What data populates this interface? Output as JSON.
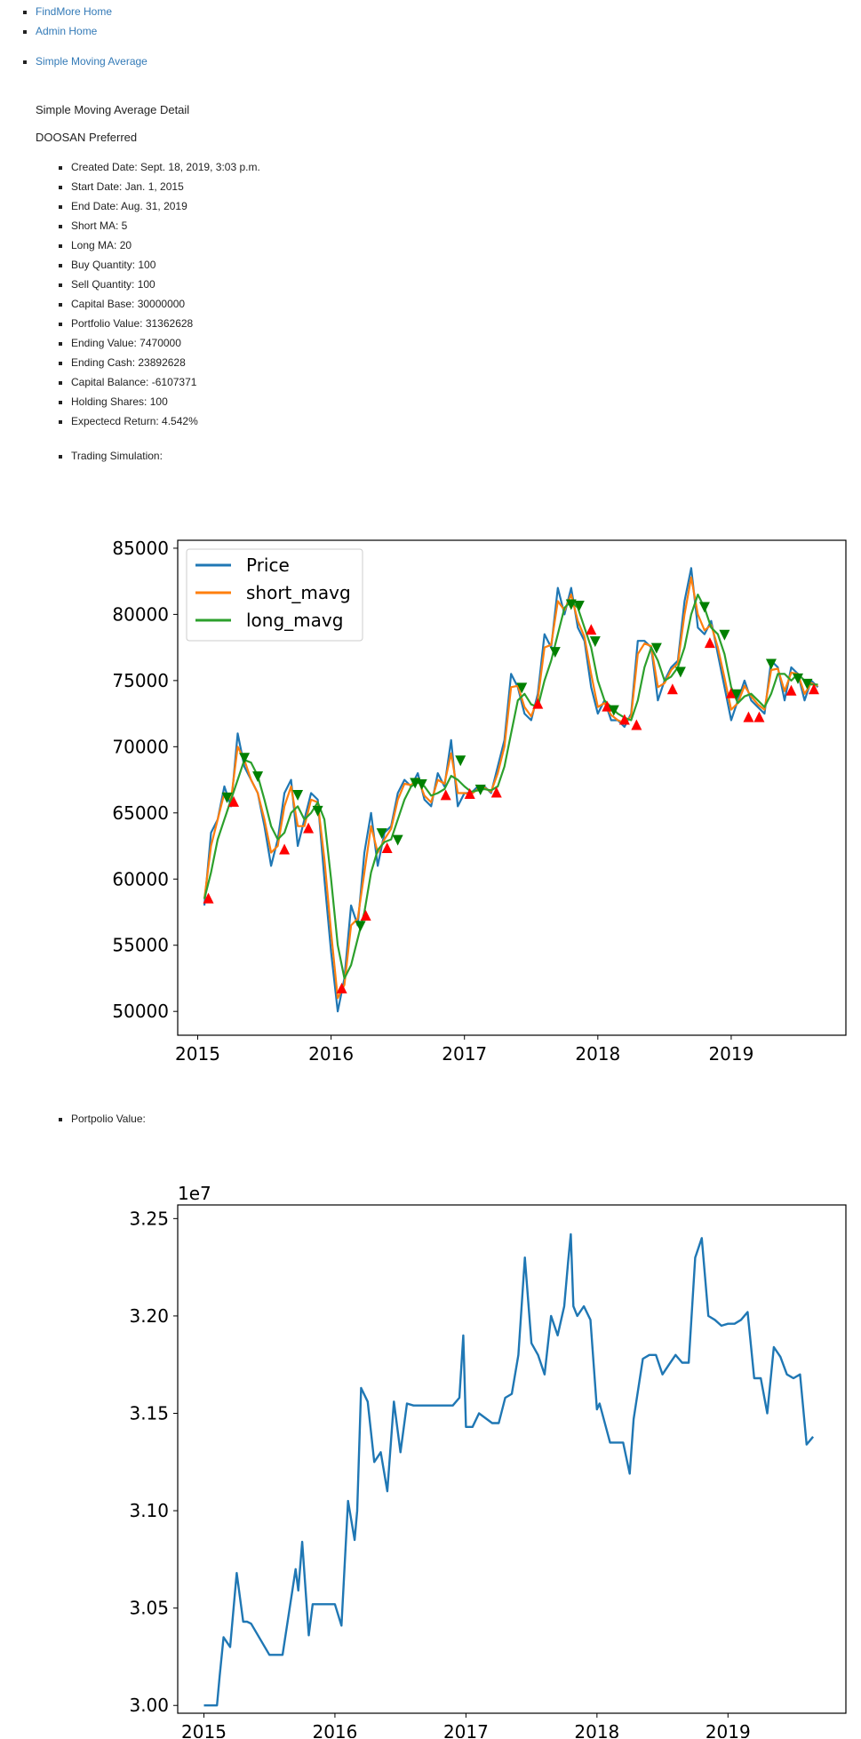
{
  "nav_top": [
    "FindMore Home",
    "Admin Home"
  ],
  "nav_section": "Simple Moving Average",
  "page_title": "Simple Moving Average Detail",
  "stock_name": "DOOSAN Preferred",
  "details": [
    "Created Date: Sept. 18, 2019, 3:03 p.m.",
    "Start Date: Jan. 1, 2015",
    "End Date: Aug. 31, 2019",
    "Short MA: 5",
    "Long MA: 20",
    "Buy Quantity: 100",
    "Sell Quantity: 100",
    "Capital Base: 30000000",
    "Portfolio Value: 31362628",
    "Ending Value: 7470000",
    "Ending Cash: 23892628",
    "Capital Balance: -6107371",
    "Holding Shares: 100",
    "Expectecd Return: 4.542%"
  ],
  "trading_label": "Trading Simulation:",
  "portfolio_label": "Portpolio Value:",
  "colors": {
    "price": "#1f77b4",
    "short": "#ff7f0e",
    "long": "#2ca02c",
    "buy": "#ff0000",
    "sell": "#008000",
    "link": "#337ab7"
  },
  "chart_data": [
    {
      "type": "line",
      "title": "",
      "xlim": [
        2014.85,
        2019.86
      ],
      "ylim": [
        48200,
        85600
      ],
      "x_ticks": [
        "2015",
        "2016",
        "2017",
        "2018",
        "2019"
      ],
      "y_ticks": [
        "50000",
        "55000",
        "60000",
        "65000",
        "70000",
        "75000",
        "80000",
        "85000"
      ],
      "legend": "top-left",
      "series": [
        {
          "name": "Price",
          "color": "#1f77b4",
          "x": [
            2015.05,
            2015.1,
            2015.15,
            2015.2,
            2015.25,
            2015.3,
            2015.35,
            2015.4,
            2015.45,
            2015.5,
            2015.55,
            2015.6,
            2015.65,
            2015.7,
            2015.75,
            2015.8,
            2015.85,
            2015.9,
            2015.95,
            2016.0,
            2016.05,
            2016.1,
            2016.15,
            2016.2,
            2016.25,
            2016.3,
            2016.35,
            2016.4,
            2016.45,
            2016.5,
            2016.55,
            2016.6,
            2016.65,
            2016.7,
            2016.75,
            2016.8,
            2016.85,
            2016.9,
            2016.95,
            2017.0,
            2017.05,
            2017.1,
            2017.15,
            2017.2,
            2017.25,
            2017.3,
            2017.35,
            2017.4,
            2017.45,
            2017.5,
            2017.55,
            2017.6,
            2017.65,
            2017.7,
            2017.75,
            2017.8,
            2017.85,
            2017.9,
            2017.95,
            2018.0,
            2018.05,
            2018.1,
            2018.15,
            2018.2,
            2018.25,
            2018.3,
            2018.35,
            2018.4,
            2018.45,
            2018.5,
            2018.55,
            2018.6,
            2018.65,
            2018.7,
            2018.75,
            2018.8,
            2018.85,
            2018.9,
            2018.95,
            2019.0,
            2019.05,
            2019.1,
            2019.15,
            2019.2,
            2019.25,
            2019.3,
            2019.35,
            2019.4,
            2019.45,
            2019.5,
            2019.55,
            2019.6,
            2019.65
          ],
          "y": [
            58000,
            63500,
            64500,
            67000,
            65500,
            71000,
            68500,
            67500,
            66500,
            64000,
            61000,
            63000,
            66500,
            67500,
            62500,
            64500,
            66500,
            66000,
            60000,
            54500,
            50000,
            52500,
            58000,
            56500,
            62000,
            65000,
            61000,
            63500,
            64000,
            66500,
            67500,
            67000,
            68000,
            66000,
            65500,
            68000,
            67000,
            70500,
            65500,
            66500,
            66500,
            67000,
            67000,
            66500,
            68500,
            70500,
            75500,
            74500,
            72500,
            72000,
            74000,
            78500,
            77500,
            82000,
            80000,
            82000,
            79000,
            78000,
            74500,
            72500,
            73500,
            72000,
            72000,
            71500,
            72500,
            78000,
            78000,
            77500,
            73500,
            75000,
            76000,
            76500,
            81000,
            83500,
            79000,
            78500,
            79500,
            77000,
            74500,
            72000,
            73500,
            75000,
            73500,
            73000,
            72500,
            76500,
            76000,
            73500,
            76000,
            75500,
            73500,
            75000,
            74500
          ]
        },
        {
          "name": "short_mavg",
          "color": "#ff7f0e",
          "x": [
            2015.05,
            2015.1,
            2015.15,
            2015.2,
            2015.25,
            2015.3,
            2015.35,
            2015.4,
            2015.45,
            2015.5,
            2015.55,
            2015.6,
            2015.65,
            2015.7,
            2015.75,
            2015.8,
            2015.85,
            2015.9,
            2015.95,
            2016.0,
            2016.05,
            2016.1,
            2016.15,
            2016.2,
            2016.25,
            2016.3,
            2016.35,
            2016.4,
            2016.45,
            2016.5,
            2016.55,
            2016.6,
            2016.65,
            2016.7,
            2016.75,
            2016.8,
            2016.85,
            2016.9,
            2016.95,
            2017.0,
            2017.05,
            2017.1,
            2017.15,
            2017.2,
            2017.25,
            2017.3,
            2017.35,
            2017.4,
            2017.45,
            2017.5,
            2017.55,
            2017.6,
            2017.65,
            2017.7,
            2017.75,
            2017.8,
            2017.85,
            2017.9,
            2017.95,
            2018.0,
            2018.05,
            2018.1,
            2018.15,
            2018.2,
            2018.25,
            2018.3,
            2018.35,
            2018.4,
            2018.45,
            2018.5,
            2018.55,
            2018.6,
            2018.65,
            2018.7,
            2018.75,
            2018.8,
            2018.85,
            2018.9,
            2018.95,
            2019.0,
            2019.05,
            2019.1,
            2019.15,
            2019.2,
            2019.25,
            2019.3,
            2019.35,
            2019.4,
            2019.45,
            2019.5,
            2019.55,
            2019.6,
            2019.65
          ],
          "y": [
            58500,
            62500,
            64500,
            66500,
            66000,
            70000,
            69000,
            67500,
            66500,
            64500,
            62000,
            62500,
            65500,
            67000,
            64000,
            64000,
            66000,
            65800,
            61500,
            56000,
            51000,
            52000,
            56500,
            57000,
            60500,
            64000,
            62000,
            63000,
            63800,
            66000,
            67200,
            67100,
            67600,
            66300,
            65800,
            67500,
            67200,
            69500,
            66500,
            66500,
            66400,
            66800,
            66900,
            66600,
            68000,
            70000,
            74500,
            74600,
            73000,
            72300,
            73600,
            77500,
            77700,
            81000,
            80300,
            81500,
            79500,
            78300,
            75500,
            73000,
            73300,
            72400,
            72000,
            71800,
            72300,
            77000,
            77800,
            77600,
            74500,
            74800,
            75800,
            76300,
            80000,
            82800,
            80000,
            78800,
            79200,
            77500,
            75200,
            72800,
            73300,
            74600,
            73800,
            73200,
            72800,
            75800,
            75900,
            74200,
            75600,
            75500,
            74000,
            74800,
            74600
          ]
        },
        {
          "name": "long_mavg",
          "color": "#2ca02c",
          "x": [
            2015.05,
            2015.1,
            2015.15,
            2015.2,
            2015.25,
            2015.3,
            2015.35,
            2015.4,
            2015.45,
            2015.5,
            2015.55,
            2015.6,
            2015.65,
            2015.7,
            2015.75,
            2015.8,
            2015.85,
            2015.9,
            2015.95,
            2016.0,
            2016.05,
            2016.1,
            2016.15,
            2016.2,
            2016.25,
            2016.3,
            2016.35,
            2016.4,
            2016.45,
            2016.5,
            2016.55,
            2016.6,
            2016.65,
            2016.7,
            2016.75,
            2016.8,
            2016.85,
            2016.9,
            2016.95,
            2017.0,
            2017.05,
            2017.1,
            2017.15,
            2017.2,
            2017.25,
            2017.3,
            2017.35,
            2017.4,
            2017.45,
            2017.5,
            2017.55,
            2017.6,
            2017.65,
            2017.7,
            2017.75,
            2017.8,
            2017.85,
            2017.9,
            2017.95,
            2018.0,
            2018.05,
            2018.1,
            2018.15,
            2018.2,
            2018.25,
            2018.3,
            2018.35,
            2018.4,
            2018.45,
            2018.5,
            2018.55,
            2018.6,
            2018.65,
            2018.7,
            2018.75,
            2018.8,
            2018.85,
            2018.9,
            2018.95,
            2019.0,
            2019.05,
            2019.1,
            2019.15,
            2019.2,
            2019.25,
            2019.3,
            2019.35,
            2019.4,
            2019.45,
            2019.5,
            2019.55,
            2019.6,
            2019.65
          ],
          "y": [
            58500,
            60500,
            63000,
            64500,
            66000,
            67500,
            69000,
            68800,
            67800,
            66000,
            64000,
            63000,
            63500,
            65000,
            65500,
            64500,
            65000,
            65800,
            64500,
            60000,
            55000,
            52500,
            53500,
            55500,
            57500,
            60500,
            62200,
            62800,
            63000,
            64500,
            66000,
            67000,
            67300,
            67000,
            66300,
            66500,
            66800,
            67800,
            67500,
            67000,
            66600,
            66700,
            66800,
            66700,
            67000,
            68500,
            71000,
            73500,
            74000,
            73200,
            73000,
            75000,
            76500,
            78500,
            80500,
            81000,
            80500,
            79000,
            77500,
            75000,
            73500,
            73000,
            72500,
            72200,
            72000,
            73500,
            76000,
            77500,
            76500,
            75000,
            75300,
            76000,
            77500,
            80000,
            81500,
            80500,
            79000,
            78500,
            77000,
            74500,
            73300,
            73800,
            74000,
            73500,
            73000,
            74000,
            75500,
            75500,
            75000,
            75500,
            75000,
            74700,
            74700
          ]
        }
      ],
      "buy_signals": {
        "x": [
          2015.08,
          2015.27,
          2015.65,
          2015.83,
          2016.08,
          2016.26,
          2016.42,
          2016.86,
          2017.04,
          2017.24,
          2017.55,
          2017.95,
          2018.07,
          2018.2,
          2018.29,
          2018.56,
          2018.84,
          2019.0,
          2019.13,
          2019.21,
          2019.45,
          2019.62
        ],
        "y": [
          58500,
          65800,
          62200,
          63800,
          51700,
          57200,
          62300,
          66300,
          66400,
          66500,
          73200,
          78800,
          73000,
          72000,
          71600,
          74300,
          77800,
          74000,
          72200,
          72200,
          74200,
          74300
        ]
      },
      "sell_signals": {
        "x": [
          2015.22,
          2015.35,
          2015.45,
          2015.75,
          2015.9,
          2016.22,
          2016.38,
          2016.5,
          2016.63,
          2016.68,
          2016.97,
          2017.12,
          2017.43,
          2017.68,
          2017.8,
          2017.86,
          2017.98,
          2018.12,
          2018.44,
          2018.62,
          2018.8,
          2018.95,
          2019.04,
          2019.3,
          2019.5,
          2019.57
        ],
        "y": [
          66200,
          69200,
          67800,
          66400,
          65200,
          56500,
          63500,
          63000,
          67300,
          67200,
          69000,
          66800,
          74500,
          77200,
          80800,
          80700,
          78000,
          72800,
          77500,
          75700,
          80600,
          78500,
          74000,
          76300,
          75200,
          74800
        ]
      }
    },
    {
      "type": "line",
      "title": "",
      "xlim": [
        2014.8,
        2019.9
      ],
      "ylim": [
        29960000.0,
        32570000.0
      ],
      "offset_label": "1e7",
      "x_ticks": [
        "2015",
        "2016",
        "2017",
        "2018",
        "2019"
      ],
      "y_ticks": [
        "3.00",
        "3.05",
        "3.10",
        "3.15",
        "3.20",
        "3.25"
      ],
      "legend": "none",
      "series": [
        {
          "name": "",
          "color": "#1f77b4",
          "x": [
            2015.0,
            2015.1,
            2015.12,
            2015.15,
            2015.2,
            2015.25,
            2015.3,
            2015.33,
            2015.36,
            2015.5,
            2015.55,
            2015.6,
            2015.7,
            2015.72,
            2015.75,
            2015.8,
            2015.83,
            2015.86,
            2015.9,
            2015.95,
            2016.0,
            2016.05,
            2016.1,
            2016.15,
            2016.17,
            2016.2,
            2016.25,
            2016.3,
            2016.35,
            2016.4,
            2016.45,
            2016.5,
            2016.55,
            2016.6,
            2016.7,
            2016.8,
            2016.9,
            2016.95,
            2016.98,
            2017.0,
            2017.05,
            2017.1,
            2017.2,
            2017.25,
            2017.3,
            2017.35,
            2017.4,
            2017.45,
            2017.5,
            2017.55,
            2017.6,
            2017.65,
            2017.7,
            2017.75,
            2017.78,
            2017.8,
            2017.82,
            2017.85,
            2017.9,
            2017.95,
            2018.0,
            2018.02,
            2018.1,
            2018.2,
            2018.25,
            2018.28,
            2018.35,
            2018.4,
            2018.45,
            2018.5,
            2018.55,
            2018.6,
            2018.65,
            2018.7,
            2018.75,
            2018.8,
            2018.85,
            2018.9,
            2018.95,
            2019.0,
            2019.05,
            2019.1,
            2019.15,
            2019.2,
            2019.25,
            2019.3,
            2019.35,
            2019.4,
            2019.45,
            2019.5,
            2019.55,
            2019.6,
            2019.65
          ],
          "y": [
            30000000,
            30000000,
            30150000,
            30350000,
            30300000,
            30680000,
            30430000,
            30430000,
            30420000,
            30260000,
            30260000,
            30260000,
            30700000,
            30590000,
            30840000,
            30360000,
            30520000,
            30520000,
            30520000,
            30520000,
            30520000,
            30410000,
            31050000,
            30850000,
            31000000,
            31630000,
            31560000,
            31250000,
            31300000,
            31100000,
            31560000,
            31300000,
            31550000,
            31540000,
            31540000,
            31540000,
            31540000,
            31580000,
            31900000,
            31430000,
            31430000,
            31500000,
            31450000,
            31450000,
            31580000,
            31600000,
            31800000,
            32300000,
            31860000,
            31800000,
            31700000,
            32000000,
            31900000,
            32050000,
            32280000,
            32420000,
            32050000,
            32000000,
            32050000,
            31980000,
            31520000,
            31550000,
            31350000,
            31350000,
            31190000,
            31470000,
            31780000,
            31800000,
            31800000,
            31700000,
            31750000,
            31800000,
            31760000,
            31760000,
            32300000,
            32400000,
            32000000,
            31980000,
            31950000,
            31960000,
            31960000,
            31980000,
            32020000,
            31680000,
            31680000,
            31500000,
            31840000,
            31790000,
            31700000,
            31680000,
            31700000,
            31340000,
            31380000
          ]
        }
      ]
    }
  ]
}
